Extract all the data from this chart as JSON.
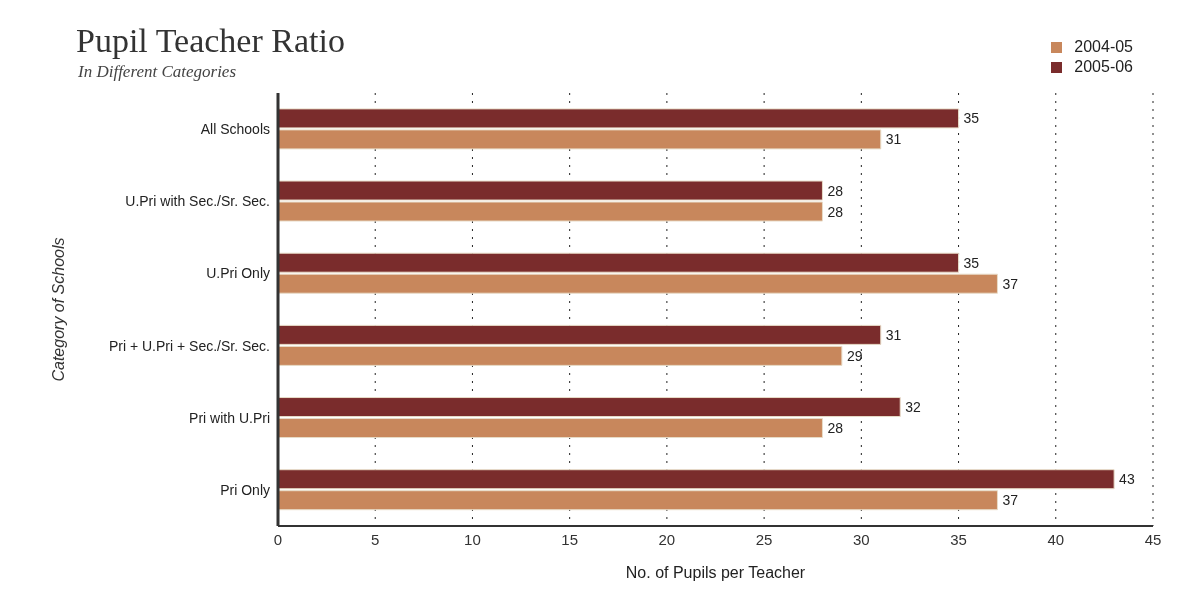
{
  "chart_data": {
    "type": "bar",
    "orientation": "horizontal",
    "title": "Pupil Teacher Ratio",
    "subtitle": "In Different Categories",
    "xlabel": "No. of Pupils per Teacher",
    "ylabel": "Category of Schools",
    "categories": [
      "All Schools",
      "U.Pri with Sec./Sr. Sec.",
      "U.Pri Only",
      "Pri + U.Pri + Sec./Sr. Sec.",
      "Pri with U.Pri",
      "Pri Only"
    ],
    "series": [
      {
        "name": "2004-05",
        "color": "#c8875c",
        "values": [
          31,
          28,
          37,
          29,
          28,
          37
        ]
      },
      {
        "name": "2005-06",
        "color": "#7a2c2c",
        "values": [
          35,
          28,
          35,
          31,
          32,
          43
        ]
      }
    ],
    "xlim": [
      0,
      45
    ],
    "xticks": [
      0,
      5,
      10,
      15,
      20,
      25,
      30,
      35,
      40,
      45
    ],
    "grid": "x",
    "legend": "top right",
    "data_labels": true
  }
}
